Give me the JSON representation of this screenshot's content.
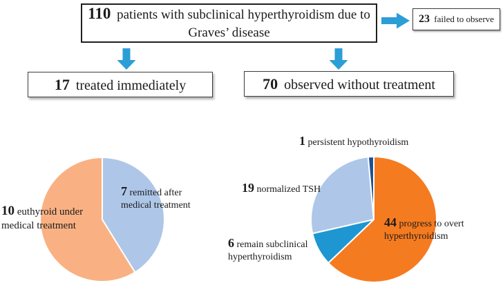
{
  "flowchart": {
    "top_box": {
      "number": "110",
      "text": "patients with subclinical hyperthyroidism due to Graves’ disease"
    },
    "failed_box": {
      "number": "23",
      "text": "failed to observe"
    },
    "treated_box": {
      "number": "17",
      "text": "treated immediately"
    },
    "observed_box": {
      "number": "70",
      "text": "observed without treatment"
    }
  },
  "icons": {
    "right_arrow": "right-block-arrow",
    "down_arrow": "down-block-arrow"
  },
  "colors": {
    "arrow_blue": "#2b9ed6",
    "light_blue": "#aec7e8",
    "light_orange": "#f9b183",
    "orange": "#f57b20",
    "medium_blue": "#1e96d2",
    "dark_blue": "#1a5192",
    "text": "#1b1b1b",
    "box_border": "#3c3c3c"
  },
  "chart_data": [
    {
      "type": "pie",
      "start_angle": "top",
      "direction": "clockwise",
      "slices": [
        {
          "value": 7,
          "label": "remitted after medical treatment",
          "color": "#aec7e8"
        },
        {
          "value": 10,
          "label": "euthyroid under medical treatment",
          "color": "#f9b183"
        }
      ]
    },
    {
      "type": "pie",
      "start_angle": "top",
      "direction": "clockwise",
      "slices": [
        {
          "value": 44,
          "label": "progress to overt hyperthyroidism",
          "color": "#f57b20"
        },
        {
          "value": 6,
          "label": "remain subclinical hyperthyroidism",
          "color": "#1e96d2"
        },
        {
          "value": 19,
          "label": "normalized TSH",
          "color": "#aec7e8"
        },
        {
          "value": 1,
          "label": "persistent hypothyroidism",
          "color": "#1a5192"
        }
      ]
    }
  ]
}
